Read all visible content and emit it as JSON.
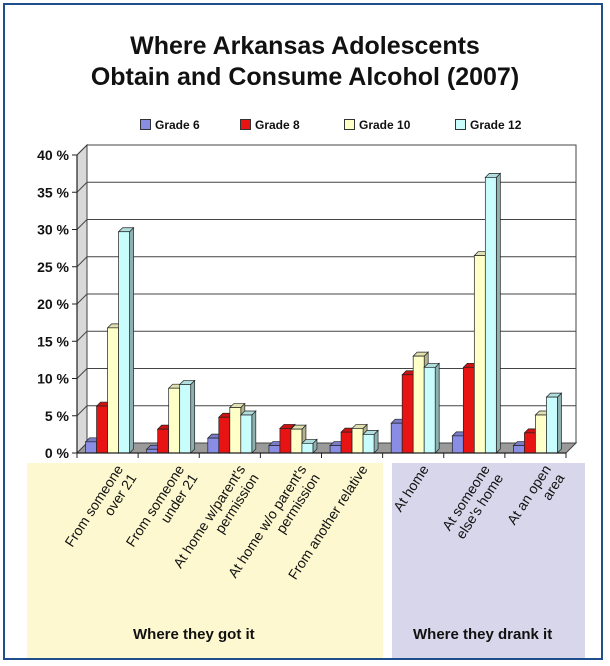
{
  "colors": {
    "frame": "#1f4e8c",
    "panel_got": "#fdf8cf",
    "panel_drank": "#d8d6eb",
    "series": [
      "#8a8de4",
      "#e81414",
      "#ffffc8",
      "#c9fdfd"
    ]
  },
  "group_labels": {
    "got": "Where they got it",
    "drank": "Where they drank it"
  },
  "chart_data": {
    "type": "bar",
    "title": "Where Arkansas Adolescents Obtain and Consume Alcohol (2007)",
    "title_lines": [
      "Where Arkansas Adolescents",
      "Obtain and Consume Alcohol (2007)"
    ],
    "xlabel": "",
    "ylabel": "",
    "ylim": [
      0,
      40
    ],
    "yticks": [
      0,
      5,
      10,
      15,
      20,
      25,
      30,
      35,
      40
    ],
    "ytick_labels": [
      "0 %",
      "5 %",
      "10 %",
      "15 %",
      "20 %",
      "25 %",
      "30 %",
      "35 %",
      "40 %"
    ],
    "grid": true,
    "legend_position": "top",
    "categories": [
      [
        "From someone",
        "over 21"
      ],
      [
        "From someone",
        "under 21"
      ],
      [
        "At home w/parent's",
        "permission"
      ],
      [
        "At home w/o parent's",
        "permission"
      ],
      [
        "From another relative"
      ],
      [
        "At home"
      ],
      [
        "At someone",
        "else's home"
      ],
      [
        "At an open",
        "area"
      ]
    ],
    "series": [
      {
        "name": "Grade 6",
        "values": [
          1.5,
          0.5,
          2.0,
          1.0,
          1.0,
          4.0,
          2.3,
          1.0
        ]
      },
      {
        "name": "Grade 8",
        "values": [
          6.3,
          3.2,
          4.8,
          3.3,
          2.8,
          10.5,
          11.5,
          2.7
        ]
      },
      {
        "name": "Grade 10",
        "values": [
          16.8,
          8.7,
          6.1,
          3.2,
          3.3,
          13.0,
          26.5,
          5.1
        ]
      },
      {
        "name": "Grade 12",
        "values": [
          29.7,
          9.2,
          5.1,
          1.3,
          2.5,
          11.5,
          37.0,
          7.5
        ]
      }
    ]
  }
}
